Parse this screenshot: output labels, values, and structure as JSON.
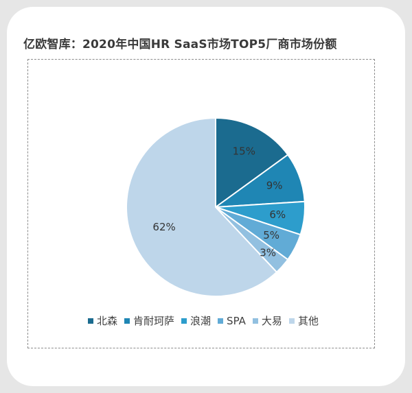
{
  "chart_data": {
    "type": "pie",
    "title": "亿欧智库：2020年中国HR SaaS市场TOP5厂商市场份额",
    "categories": [
      "北森",
      "肯耐珂萨",
      "浪潮",
      "SPA",
      "大易",
      "其他"
    ],
    "values": [
      15,
      9,
      6,
      5,
      3,
      62
    ],
    "value_labels": [
      "15%",
      "9%",
      "6%",
      "5%",
      "3%",
      "62%"
    ],
    "colors": [
      "#1b6b8f",
      "#1f86b4",
      "#2d9dcc",
      "#61abd6",
      "#92c0e0",
      "#bed6ea"
    ],
    "label_color": "#333333",
    "legend_position": "bottom",
    "start_angle": "top, clockwise"
  }
}
